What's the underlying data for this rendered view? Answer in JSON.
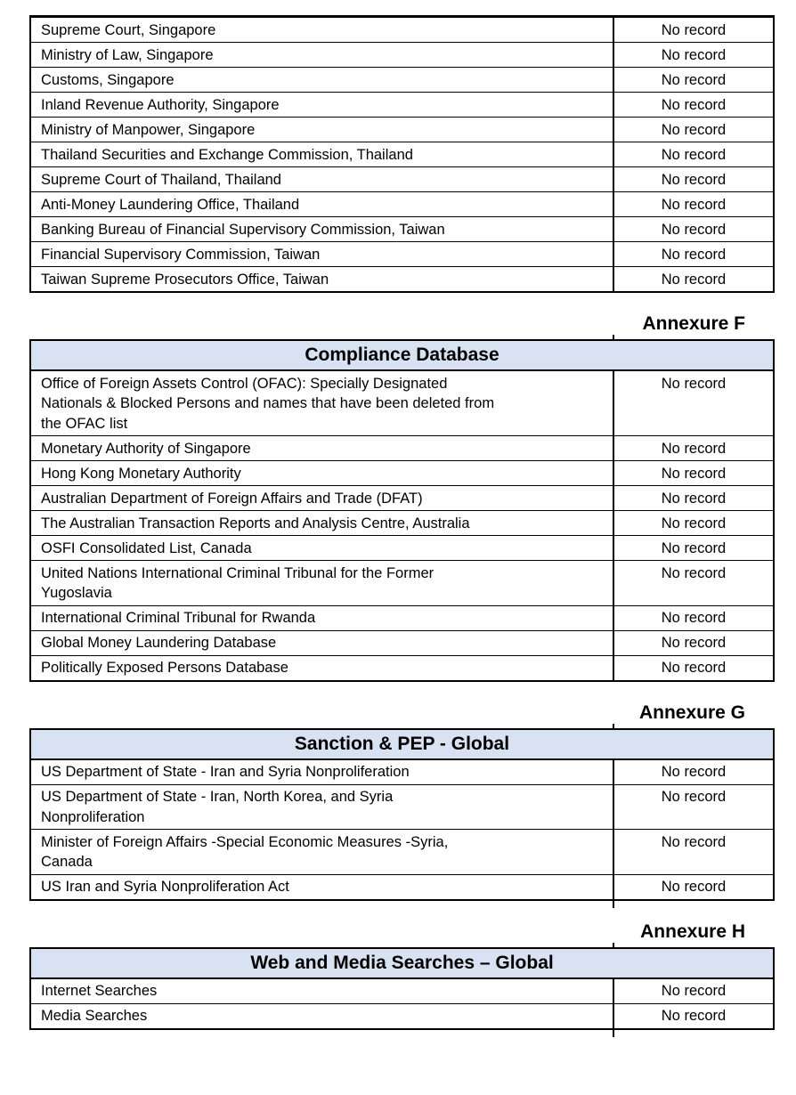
{
  "document": {
    "status_value": "No record",
    "colors": {
      "page_bg": "#ffffff",
      "table_header_bg": "#d8e2f3",
      "border": "#000000",
      "text": "#000000"
    },
    "tables": [
      {
        "annexure": null,
        "title": null,
        "rows": [
          {
            "source": "Supreme Court, Singapore",
            "status": "No record"
          },
          {
            "source": "Ministry of Law, Singapore",
            "status": "No record"
          },
          {
            "source": "Customs, Singapore",
            "status": "No record"
          },
          {
            "source": "Inland Revenue Authority, Singapore",
            "status": "No record"
          },
          {
            "source": "Ministry of Manpower, Singapore",
            "status": "No record"
          },
          {
            "source": "Thailand Securities and Exchange Commission, Thailand",
            "status": "No record"
          },
          {
            "source": "Supreme Court of Thailand, Thailand",
            "status": "No record"
          },
          {
            "source": "Anti-Money Laundering Office, Thailand",
            "status": "No record"
          },
          {
            "source": "Banking Bureau of Financial Supervisory Commission, Taiwan",
            "status": "No record"
          },
          {
            "source": "Financial Supervisory Commission, Taiwan",
            "status": "No record"
          },
          {
            "source": "Taiwan Supreme Prosecutors Office, Taiwan",
            "status": "No record"
          }
        ]
      },
      {
        "annexure": "Annexure F",
        "title": "Compliance Database",
        "rows": [
          {
            "source": "Office of Foreign Assets Control (OFAC): Specially Designated\nNationals & Blocked Persons and names that have been deleted from\nthe OFAC list",
            "status": "No record"
          },
          {
            "source": "Monetary Authority of Singapore",
            "status": "No record"
          },
          {
            "source": "Hong Kong Monetary Authority",
            "status": "No record"
          },
          {
            "source": "Australian Department of Foreign Affairs and Trade (DFAT)",
            "status": "No record"
          },
          {
            "source": "The Australian Transaction Reports and Analysis Centre, Australia",
            "status": "No record"
          },
          {
            "source": "OSFI Consolidated List, Canada",
            "status": "No record"
          },
          {
            "source": "United Nations International Criminal Tribunal for the Former\nYugoslavia",
            "status": "No record"
          },
          {
            "source": "International Criminal Tribunal for Rwanda",
            "status": "No record"
          },
          {
            "source": "Global Money Laundering Database",
            "status": "No record"
          },
          {
            "source": "Politically Exposed Persons Database",
            "status": "No record"
          }
        ]
      },
      {
        "annexure": "Annexure G",
        "title": "Sanction & PEP - Global",
        "rows": [
          {
            "source": "US Department of State - Iran and Syria Nonproliferation",
            "status": "No record"
          },
          {
            "source": "US Department of State - Iran, North Korea, and Syria\nNonproliferation",
            "status": "No record"
          },
          {
            "source": "Minister of Foreign Affairs -Special Economic Measures -Syria,\nCanada",
            "status": "No record"
          },
          {
            "source": "US Iran and Syria Nonproliferation Act",
            "status": "No record"
          }
        ]
      },
      {
        "annexure": "Annexure H",
        "title": "Web and Media Searches – Global",
        "rows": [
          {
            "source": "Internet Searches",
            "status": "No record"
          },
          {
            "source": "Media Searches",
            "status": "No record"
          }
        ]
      }
    ]
  }
}
